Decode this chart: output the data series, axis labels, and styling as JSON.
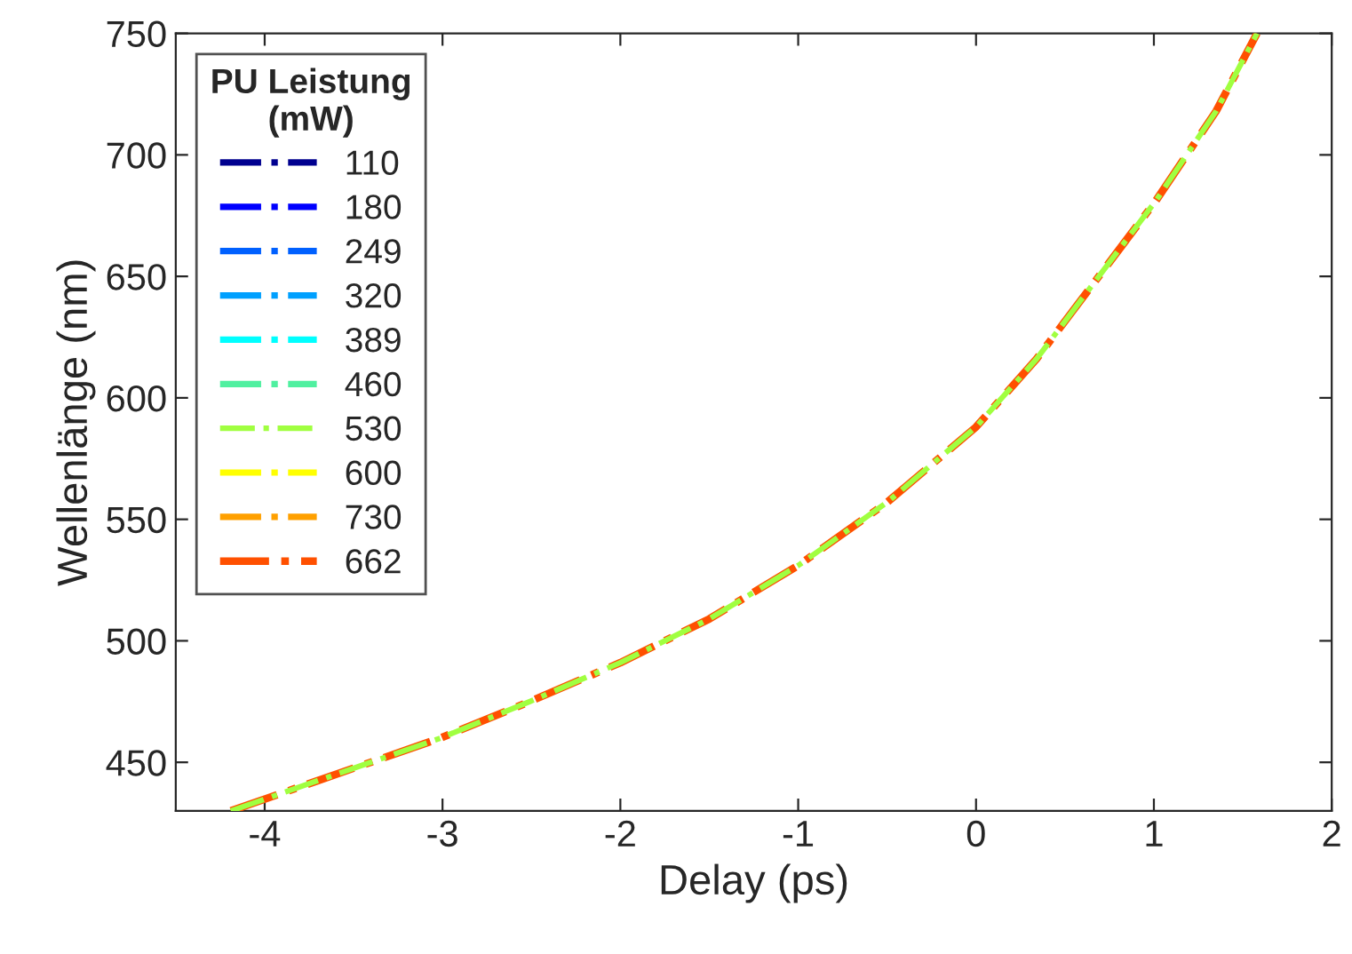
{
  "chart_data": {
    "type": "line",
    "xlabel": "Delay (ps)",
    "ylabel": "Wellenlänge (nm)",
    "legend_title": "PU Leistung\n(mW)",
    "x": [
      -4.19,
      -3.68,
      -3.01,
      -2.51,
      -2.0,
      -1.5,
      -1.0,
      -0.5,
      0.0,
      0.34,
      0.67,
      1.01,
      1.35,
      1.58
    ],
    "series": [
      {
        "name": "110",
        "color": "#00008f",
        "values": [
          null,
          null,
          null,
          null,
          null,
          null,
          null,
          null,
          null,
          null,
          null,
          null,
          null,
          null
        ]
      },
      {
        "name": "180",
        "color": "#0000ff",
        "values": [
          null,
          null,
          null,
          null,
          null,
          null,
          null,
          null,
          null,
          null,
          null,
          null,
          null,
          null
        ]
      },
      {
        "name": "249",
        "color": "#0060ff",
        "values": [
          null,
          null,
          null,
          null,
          null,
          null,
          null,
          null,
          null,
          null,
          null,
          null,
          null,
          null
        ]
      },
      {
        "name": "320",
        "color": "#00a0ff",
        "values": [
          null,
          null,
          null,
          null,
          null,
          null,
          null,
          null,
          null,
          null,
          null,
          null,
          null,
          null
        ]
      },
      {
        "name": "389",
        "color": "#00ffff",
        "values": [
          null,
          null,
          null,
          null,
          null,
          null,
          null,
          null,
          null,
          null,
          null,
          null,
          null,
          null
        ]
      },
      {
        "name": "460",
        "color": "#50f0a0",
        "values": [
          null,
          null,
          null,
          null,
          null,
          null,
          null,
          null,
          null,
          null,
          null,
          null,
          null,
          null
        ]
      },
      {
        "name": "530",
        "color": "#a0ff40",
        "values": [
          430,
          443,
          460,
          475,
          491,
          509,
          531,
          557,
          588,
          616,
          648,
          681,
          718,
          750
        ]
      },
      {
        "name": "600",
        "color": "#ffff00",
        "values": [
          null,
          null,
          null,
          null,
          null,
          null,
          null,
          null,
          null,
          null,
          null,
          null,
          null,
          null
        ]
      },
      {
        "name": "730",
        "color": "#ffa000",
        "values": [
          null,
          null,
          null,
          null,
          null,
          null,
          null,
          null,
          null,
          null,
          null,
          null,
          null,
          null
        ]
      },
      {
        "name": "662",
        "color": "#ff5000",
        "values": [
          430,
          443,
          460,
          475,
          491,
          509,
          531,
          557,
          588,
          616,
          648,
          681,
          718,
          750
        ]
      }
    ],
    "xlim": [
      -4.5,
      2
    ],
    "xticks": [
      -4,
      -3,
      -2,
      -1,
      0,
      1,
      2
    ],
    "ylim": [
      430,
      750
    ],
    "yticks": [
      450,
      500,
      550,
      600,
      650,
      700,
      750
    ],
    "legend": "top left",
    "line_style": "dashdot",
    "grid": false
  }
}
